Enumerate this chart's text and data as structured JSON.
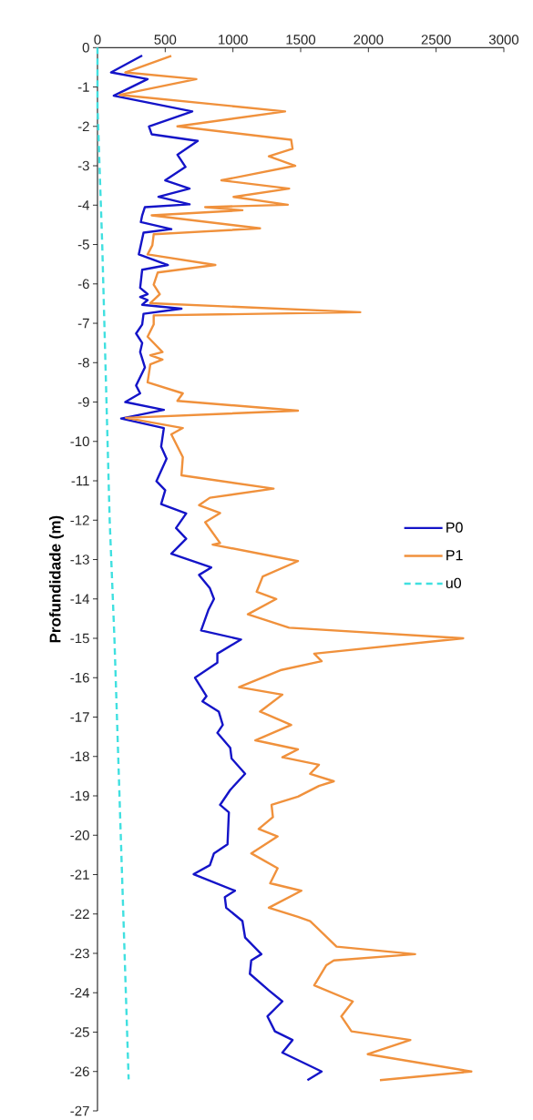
{
  "chart_data": {
    "type": "line",
    "ylabel": "Profundidade (m)",
    "xlim": [
      0,
      3000
    ],
    "ylim": [
      -27,
      0
    ],
    "xticks": [
      0,
      500,
      1000,
      1500,
      2000,
      2500,
      3000
    ],
    "yticks": [
      0,
      -1,
      -2,
      -3,
      -4,
      -5,
      -6,
      -7,
      -8,
      -9,
      -10,
      -11,
      -12,
      -13,
      -14,
      -15,
      -16,
      -17,
      -18,
      -19,
      -20,
      -21,
      -22,
      -23,
      -24,
      -25,
      -26,
      -27
    ],
    "legend": "right",
    "series": [
      {
        "name": "P0",
        "color": "#1414c8",
        "line_style": "solid",
        "x": [
          330,
          100,
          370,
          120,
          700,
          380,
          400,
          740,
          590,
          650,
          500,
          680,
          450,
          680,
          350,
          330,
          320,
          545,
          340,
          305,
          520,
          330,
          315,
          370,
          315,
          370,
          330,
          620,
          340,
          330,
          285,
          330,
          315,
          350,
          285,
          315,
          205,
          490,
          175,
          490,
          470,
          510,
          435,
          500,
          470,
          655,
          580,
          655,
          545,
          840,
          750,
          830,
          860,
          820,
          765,
          1060,
          885,
          885,
          720,
          805,
          775,
          895,
          925,
          885,
          980,
          990,
          1090,
          980,
          905,
          970,
          960,
          860,
          830,
          710,
          1015,
          940,
          950,
          1070,
          1090,
          1210,
          1135,
          1125,
          1265,
          1365,
          1255,
          1310,
          1440,
          1365,
          1655,
          1550
        ],
        "values": [
          -0.2,
          -0.63,
          -0.8,
          -1.22,
          -1.62,
          -2.0,
          -2.2,
          -2.37,
          -2.72,
          -3.03,
          -3.37,
          -3.58,
          -3.79,
          -3.98,
          -4.05,
          -4.26,
          -4.43,
          -4.61,
          -4.7,
          -5.25,
          -5.52,
          -5.64,
          -6.1,
          -6.26,
          -6.33,
          -6.41,
          -6.53,
          -6.63,
          -6.76,
          -7.03,
          -7.26,
          -7.5,
          -7.73,
          -8.12,
          -8.58,
          -8.78,
          -9.0,
          -9.2,
          -9.42,
          -9.66,
          -10.13,
          -10.44,
          -11.01,
          -11.24,
          -11.59,
          -11.83,
          -12.2,
          -12.47,
          -12.85,
          -13.2,
          -13.39,
          -13.73,
          -14.0,
          -14.27,
          -14.8,
          -15.03,
          -15.39,
          -15.62,
          -16.0,
          -16.47,
          -16.6,
          -16.86,
          -17.2,
          -17.4,
          -17.78,
          -18.05,
          -18.44,
          -18.85,
          -19.23,
          -19.42,
          -20.23,
          -20.46,
          -20.76,
          -20.99,
          -21.41,
          -21.57,
          -21.84,
          -22.18,
          -22.6,
          -23.02,
          -23.18,
          -23.52,
          -23.94,
          -24.22,
          -24.6,
          -24.98,
          -25.2,
          -25.52,
          -26.0,
          -26.22
        ]
      },
      {
        "name": "P1",
        "color": "#f0913c",
        "line_style": "solid",
        "x": [
          545,
          205,
          730,
          165,
          1385,
          590,
          1430,
          1440,
          1265,
          1460,
          915,
          1415,
          1005,
          1405,
          795,
          1070,
          400,
          1200,
          415,
          405,
          370,
          870,
          445,
          415,
          460,
          390,
          1940,
          415,
          415,
          370,
          480,
          390,
          480,
          390,
          370,
          630,
          590,
          1480,
          210,
          630,
          545,
          630,
          620,
          1300,
          830,
          750,
          905,
          795,
          905,
          850,
          1480,
          1220,
          1175,
          1320,
          1110,
          1415,
          2700,
          1600,
          1655,
          1350,
          1045,
          1365,
          1200,
          1430,
          1165,
          1480,
          1365,
          1635,
          1570,
          1745,
          1635,
          1480,
          1285,
          1295,
          1190,
          1330,
          1135,
          1330,
          1275,
          1505,
          1265,
          1480,
          1570,
          1765,
          2345,
          1745,
          1690,
          1600,
          1885,
          1800,
          1875,
          2310,
          1995,
          2760,
          2085
        ],
        "values": [
          -0.21,
          -0.63,
          -0.8,
          -1.2,
          -1.62,
          -2.0,
          -2.34,
          -2.57,
          -2.76,
          -3.0,
          -3.37,
          -3.58,
          -3.79,
          -3.99,
          -4.05,
          -4.13,
          -4.26,
          -4.59,
          -4.74,
          -5.02,
          -5.25,
          -5.52,
          -5.71,
          -6.02,
          -6.26,
          -6.49,
          -6.72,
          -6.8,
          -7.03,
          -7.34,
          -7.73,
          -7.81,
          -7.92,
          -8.04,
          -8.5,
          -8.78,
          -8.97,
          -9.22,
          -9.4,
          -9.66,
          -9.82,
          -10.4,
          -10.86,
          -11.2,
          -11.43,
          -11.62,
          -11.82,
          -12.05,
          -12.58,
          -12.62,
          -13.04,
          -13.43,
          -13.82,
          -14.0,
          -14.39,
          -14.73,
          -15.0,
          -15.39,
          -15.58,
          -15.81,
          -16.24,
          -16.43,
          -16.86,
          -17.2,
          -17.59,
          -17.82,
          -18.02,
          -18.21,
          -18.44,
          -18.63,
          -18.75,
          -19.02,
          -19.23,
          -19.54,
          -19.84,
          -20.03,
          -20.46,
          -20.84,
          -21.22,
          -21.41,
          -21.84,
          -22.07,
          -22.18,
          -22.83,
          -23.02,
          -23.18,
          -23.3,
          -23.81,
          -24.22,
          -24.6,
          -24.98,
          -25.2,
          -25.56,
          -26.0,
          -26.22
        ]
      },
      {
        "name": "u0",
        "color": "#40e0e0",
        "line_style": "dashed",
        "x": [
          0,
          0,
          35,
          90,
          125,
          230
        ],
        "values": [
          0,
          -1.5,
          -5,
          -12,
          -15,
          -26.2
        ]
      }
    ]
  }
}
